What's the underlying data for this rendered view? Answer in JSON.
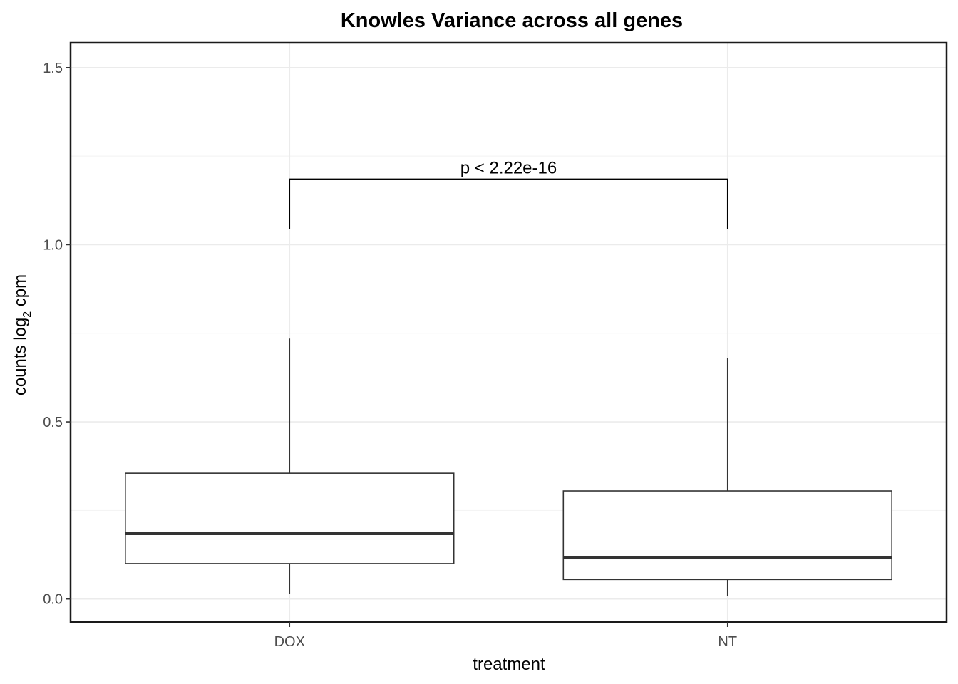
{
  "chart_data": {
    "type": "box",
    "title": "Knowles Variance across all genes",
    "xlabel": "treatment",
    "ylabel": {
      "main": "counts log",
      "sub": "2",
      "suffix": " cpm"
    },
    "categories": [
      "DOX",
      "NT"
    ],
    "ylim": [
      -0.065,
      1.57
    ],
    "yticks": [
      0.0,
      0.5,
      1.0,
      1.5
    ],
    "ytick_labels": [
      "0.0",
      "0.5",
      "1.0",
      "1.5"
    ],
    "grid": true,
    "boxes": [
      {
        "category": "DOX",
        "whisker_low": 0.015,
        "q1": 0.1,
        "median": 0.185,
        "q3": 0.355,
        "whisker_high": 0.735
      },
      {
        "category": "NT",
        "whisker_low": 0.008,
        "q1": 0.055,
        "median": 0.117,
        "q3": 0.305,
        "whisker_high": 0.68
      }
    ],
    "comparison": {
      "groups": [
        "DOX",
        "NT"
      ],
      "label": "p < 2.22e-16",
      "bracket_y": 1.185,
      "tip_y": 1.045
    }
  }
}
